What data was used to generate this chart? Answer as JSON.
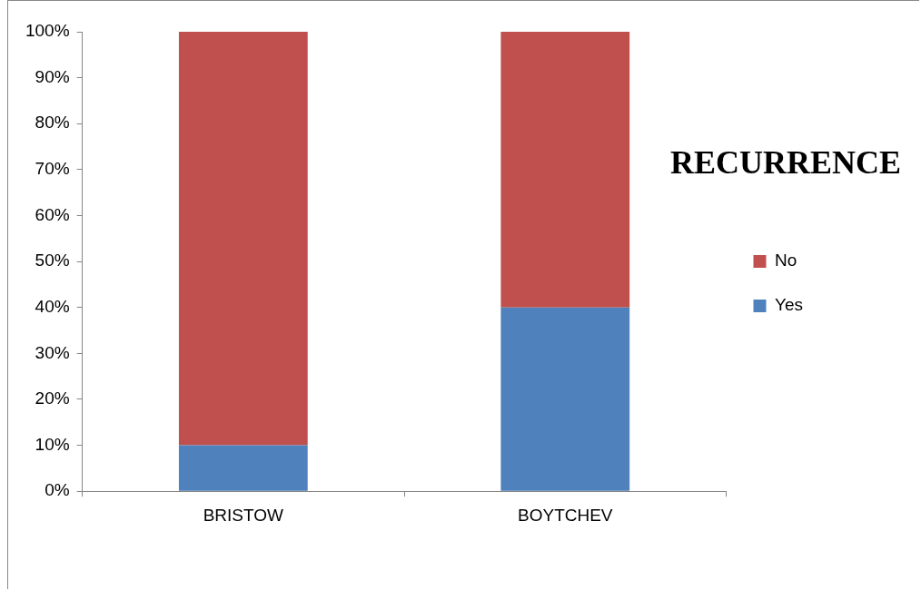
{
  "chart_data": {
    "type": "bar",
    "title": "RECURRENCE",
    "categories": [
      "BRISTOW",
      "BOYTCHEV"
    ],
    "stacked": true,
    "series": [
      {
        "name": "Yes",
        "color": "#4f81bd",
        "values": [
          10,
          40
        ]
      },
      {
        "name": "No",
        "color": "#c0504d",
        "values": [
          90,
          60
        ]
      }
    ],
    "ylim": [
      0,
      100
    ],
    "yticks": [
      {
        "value": 0,
        "label": "0%"
      },
      {
        "value": 10,
        "label": "10%"
      },
      {
        "value": 20,
        "label": "20%"
      },
      {
        "value": 30,
        "label": "30%"
      },
      {
        "value": 40,
        "label": "40%"
      },
      {
        "value": 50,
        "label": "50%"
      },
      {
        "value": 60,
        "label": "60%"
      },
      {
        "value": 70,
        "label": "70%"
      },
      {
        "value": 80,
        "label": "80%"
      },
      {
        "value": 90,
        "label": "90%"
      },
      {
        "value": 100,
        "label": "100%"
      }
    ],
    "grid": false,
    "legend": "right"
  }
}
